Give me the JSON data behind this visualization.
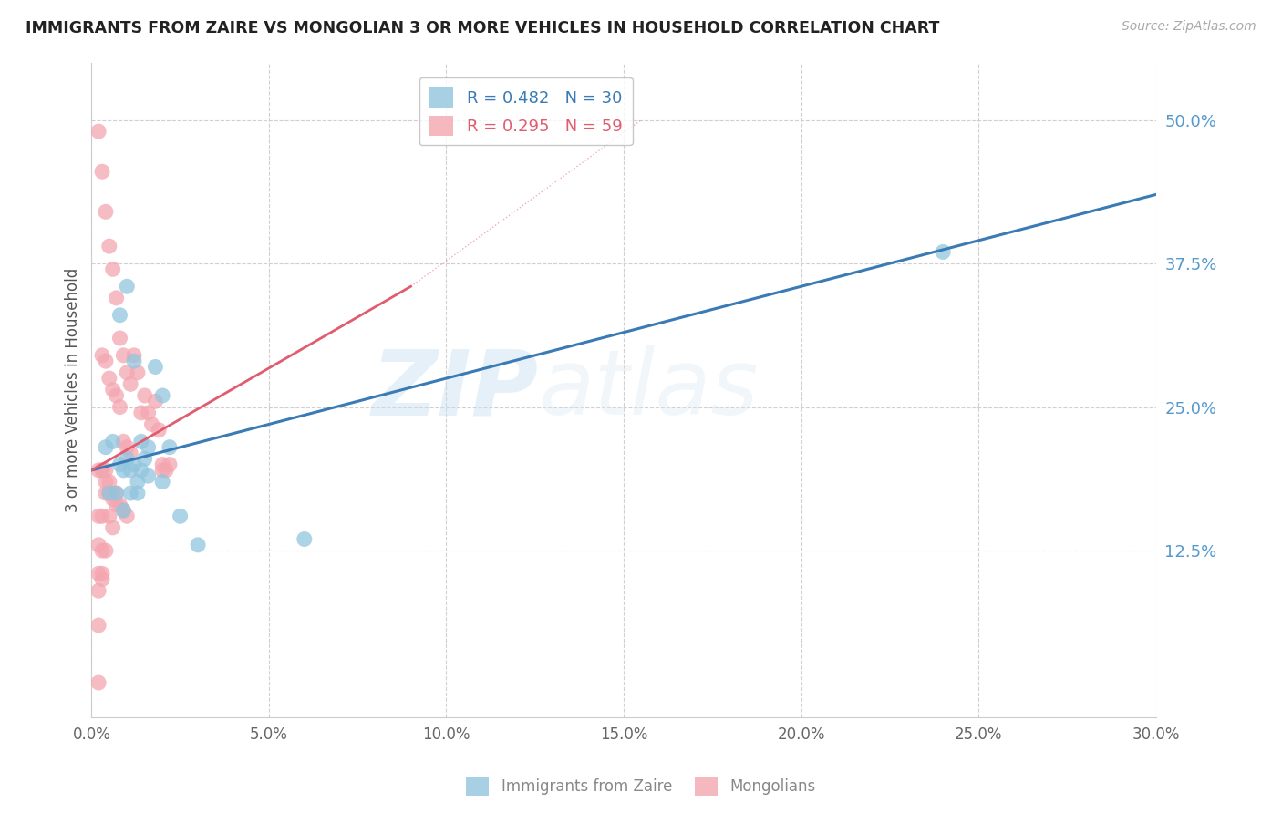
{
  "title": "IMMIGRANTS FROM ZAIRE VS MONGOLIAN 3 OR MORE VEHICLES IN HOUSEHOLD CORRELATION CHART",
  "source": "Source: ZipAtlas.com",
  "ylabel": "3 or more Vehicles in Household",
  "right_ytick_labels": [
    "50.0%",
    "37.5%",
    "25.0%",
    "12.5%"
  ],
  "right_ytick_values": [
    0.5,
    0.375,
    0.25,
    0.125
  ],
  "xlim": [
    0.0,
    0.3
  ],
  "ylim": [
    -0.02,
    0.55
  ],
  "xtick_labels": [
    "0.0%",
    "5.0%",
    "10.0%",
    "15.0%",
    "20.0%",
    "25.0%",
    "30.0%"
  ],
  "xtick_values": [
    0.0,
    0.05,
    0.1,
    0.15,
    0.2,
    0.25,
    0.3
  ],
  "watermark_zip": "ZIP",
  "watermark_atlas": "atlas",
  "blue_color": "#92c5de",
  "pink_color": "#f4a6b0",
  "blue_line_color": "#3a7ab5",
  "pink_line_color": "#e05c6e",
  "grid_color": "#d0d0d0",
  "title_color": "#222222",
  "right_axis_color": "#5599cc",
  "blue_line_x0": 0.0,
  "blue_line_y0": 0.195,
  "blue_line_x1": 0.3,
  "blue_line_y1": 0.435,
  "pink_line_x0": 0.0,
  "pink_line_y0": 0.195,
  "pink_line_x1": 0.09,
  "pink_line_y1": 0.355,
  "blue_scatter_x": [
    0.004,
    0.006,
    0.008,
    0.009,
    0.01,
    0.011,
    0.012,
    0.013,
    0.014,
    0.015,
    0.016,
    0.018,
    0.02,
    0.022,
    0.008,
    0.01,
    0.012,
    0.014,
    0.016,
    0.005,
    0.007,
    0.009,
    0.011,
    0.013,
    0.02,
    0.025,
    0.03,
    0.06,
    0.24
  ],
  "blue_scatter_y": [
    0.215,
    0.22,
    0.2,
    0.195,
    0.205,
    0.195,
    0.2,
    0.185,
    0.195,
    0.205,
    0.19,
    0.285,
    0.26,
    0.215,
    0.33,
    0.355,
    0.29,
    0.22,
    0.215,
    0.175,
    0.175,
    0.16,
    0.175,
    0.175,
    0.185,
    0.155,
    0.13,
    0.135,
    0.385
  ],
  "pink_scatter_x": [
    0.002,
    0.003,
    0.004,
    0.005,
    0.006,
    0.007,
    0.008,
    0.009,
    0.01,
    0.011,
    0.012,
    0.013,
    0.014,
    0.015,
    0.016,
    0.017,
    0.018,
    0.019,
    0.02,
    0.021,
    0.022,
    0.003,
    0.004,
    0.005,
    0.006,
    0.007,
    0.008,
    0.009,
    0.01,
    0.011,
    0.003,
    0.004,
    0.005,
    0.006,
    0.007,
    0.008,
    0.009,
    0.01,
    0.002,
    0.003,
    0.004,
    0.005,
    0.006,
    0.007,
    0.002,
    0.003,
    0.004,
    0.005,
    0.006,
    0.002,
    0.003,
    0.004,
    0.002,
    0.003,
    0.002,
    0.003,
    0.002,
    0.02,
    0.002
  ],
  "pink_scatter_y": [
    0.49,
    0.455,
    0.42,
    0.39,
    0.37,
    0.345,
    0.31,
    0.295,
    0.28,
    0.27,
    0.295,
    0.28,
    0.245,
    0.26,
    0.245,
    0.235,
    0.255,
    0.23,
    0.2,
    0.195,
    0.2,
    0.295,
    0.29,
    0.275,
    0.265,
    0.26,
    0.25,
    0.22,
    0.215,
    0.21,
    0.195,
    0.195,
    0.185,
    0.175,
    0.175,
    0.165,
    0.16,
    0.155,
    0.195,
    0.195,
    0.185,
    0.175,
    0.17,
    0.165,
    0.155,
    0.155,
    0.175,
    0.155,
    0.145,
    0.13,
    0.125,
    0.125,
    0.105,
    0.1,
    0.09,
    0.105,
    0.06,
    0.195,
    0.01
  ]
}
